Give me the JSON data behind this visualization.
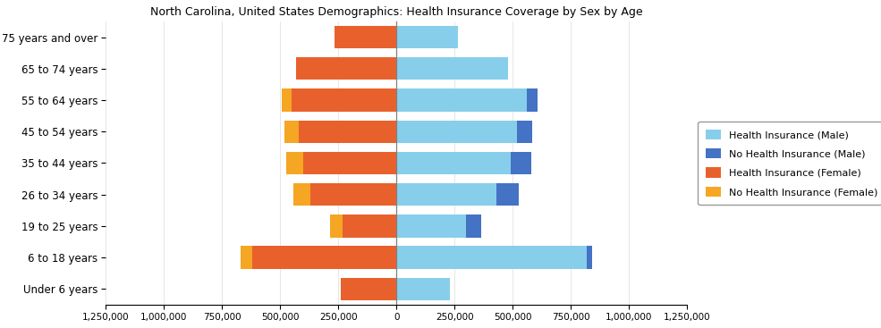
{
  "title": "North Carolina, United States Demographics: Health Insurance Coverage by Sex by Age",
  "age_groups": [
    "Under 6 years",
    "6 to 18 years",
    "19 to 25 years",
    "26 to 34 years",
    "35 to 44 years",
    "45 to 54 years",
    "55 to 64 years",
    "65 to 74 years",
    "75 years and over"
  ],
  "female_insured": [
    240000,
    620000,
    230000,
    370000,
    400000,
    420000,
    450000,
    430000,
    265000
  ],
  "female_uninsured": [
    0,
    50000,
    55000,
    75000,
    75000,
    60000,
    45000,
    0,
    0
  ],
  "male_insured": [
    230000,
    820000,
    300000,
    430000,
    490000,
    520000,
    560000,
    480000,
    265000
  ],
  "male_uninsured": [
    0,
    20000,
    65000,
    95000,
    90000,
    65000,
    45000,
    0,
    0
  ],
  "colors": {
    "female_insured": "#e8612c",
    "female_uninsured": "#f5a623",
    "male_insured": "#87ceeb",
    "male_uninsured": "#4472c4"
  },
  "legend_labels": [
    "Health Insurance (Male)",
    "No Health Insurance (Male)",
    "Health Insurance (Female)",
    "No Health Insurance (Female)"
  ],
  "xlim": 1250000,
  "tick_interval": 250000,
  "background_color": "#ffffff"
}
